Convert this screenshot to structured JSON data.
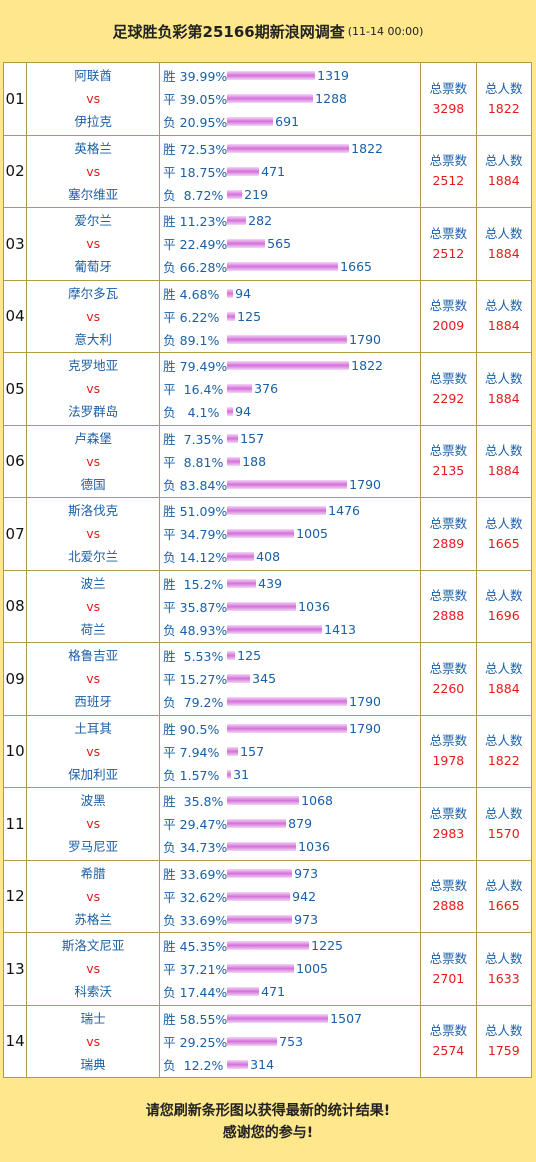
{
  "header": {
    "title": "足球胜负彩第25166期新浪网调查",
    "date": "(11-14 00:00)"
  },
  "stat_labels": {
    "votes": "总票数",
    "people": "总人数"
  },
  "vs_label": "vs",
  "bar_max": 1822,
  "matches": [
    {
      "num": "01",
      "home": "阿联酋",
      "away": "伊拉克",
      "rows": [
        {
          "label": "胜 39.99%",
          "value": 1319
        },
        {
          "label": "平 39.05%",
          "value": 1288
        },
        {
          "label": "负 20.95%",
          "value": 691
        }
      ],
      "votes": "3298",
      "people": "1822"
    },
    {
      "num": "02",
      "home": "英格兰",
      "away": "塞尔维亚",
      "rows": [
        {
          "label": "胜 72.53%",
          "value": 1822
        },
        {
          "label": "平 18.75%",
          "value": 471
        },
        {
          "label": "负  8.72%",
          "value": 219
        }
      ],
      "votes": "2512",
      "people": "1884"
    },
    {
      "num": "03",
      "home": "爱尔兰",
      "away": "葡萄牙",
      "rows": [
        {
          "label": "胜 11.23%",
          "value": 282
        },
        {
          "label": "平 22.49%",
          "value": 565
        },
        {
          "label": "负 66.28%",
          "value": 1665
        }
      ],
      "votes": "2512",
      "people": "1884"
    },
    {
      "num": "04",
      "home": "摩尔多瓦",
      "away": "意大利",
      "rows": [
        {
          "label": "胜 4.68%",
          "value": 94
        },
        {
          "label": "平 6.22%",
          "value": 125
        },
        {
          "label": "负 89.1%",
          "value": 1790
        }
      ],
      "votes": "2009",
      "people": "1884"
    },
    {
      "num": "05",
      "home": "克罗地亚",
      "away": "法罗群岛",
      "rows": [
        {
          "label": "胜 79.49%",
          "value": 1822
        },
        {
          "label": "平  16.4%",
          "value": 376
        },
        {
          "label": "负   4.1%",
          "value": 94
        }
      ],
      "votes": "2292",
      "people": "1884"
    },
    {
      "num": "06",
      "home": "卢森堡",
      "away": "德国",
      "rows": [
        {
          "label": "胜  7.35%",
          "value": 157
        },
        {
          "label": "平  8.81%",
          "value": 188
        },
        {
          "label": "负 83.84%",
          "value": 1790
        }
      ],
      "votes": "2135",
      "people": "1884"
    },
    {
      "num": "07",
      "home": "斯洛伐克",
      "away": "北爱尔兰",
      "rows": [
        {
          "label": "胜 51.09%",
          "value": 1476
        },
        {
          "label": "平 34.79%",
          "value": 1005
        },
        {
          "label": "负 14.12%",
          "value": 408
        }
      ],
      "votes": "2889",
      "people": "1665"
    },
    {
      "num": "08",
      "home": "波兰",
      "away": "荷兰",
      "rows": [
        {
          "label": "胜  15.2%",
          "value": 439
        },
        {
          "label": "平 35.87%",
          "value": 1036
        },
        {
          "label": "负 48.93%",
          "value": 1413
        }
      ],
      "votes": "2888",
      "people": "1696"
    },
    {
      "num": "09",
      "home": "格鲁吉亚",
      "away": "西班牙",
      "rows": [
        {
          "label": "胜  5.53%",
          "value": 125
        },
        {
          "label": "平 15.27%",
          "value": 345
        },
        {
          "label": "负  79.2%",
          "value": 1790
        }
      ],
      "votes": "2260",
      "people": "1884"
    },
    {
      "num": "10",
      "home": "土耳其",
      "away": "保加利亚",
      "rows": [
        {
          "label": "胜 90.5%",
          "value": 1790
        },
        {
          "label": "平 7.94%",
          "value": 157
        },
        {
          "label": "负 1.57%",
          "value": 31
        }
      ],
      "votes": "1978",
      "people": "1822"
    },
    {
      "num": "11",
      "home": "波黑",
      "away": "罗马尼亚",
      "rows": [
        {
          "label": "胜  35.8%",
          "value": 1068
        },
        {
          "label": "平 29.47%",
          "value": 879
        },
        {
          "label": "负 34.73%",
          "value": 1036
        }
      ],
      "votes": "2983",
      "people": "1570"
    },
    {
      "num": "12",
      "home": "希腊",
      "away": "苏格兰",
      "rows": [
        {
          "label": "胜 33.69%",
          "value": 973
        },
        {
          "label": "平 32.62%",
          "value": 942
        },
        {
          "label": "负 33.69%",
          "value": 973
        }
      ],
      "votes": "2888",
      "people": "1665"
    },
    {
      "num": "13",
      "home": "斯洛文尼亚",
      "away": "科索沃",
      "rows": [
        {
          "label": "胜 45.35%",
          "value": 1225
        },
        {
          "label": "平 37.21%",
          "value": 1005
        },
        {
          "label": "负 17.44%",
          "value": 471
        }
      ],
      "votes": "2701",
      "people": "1633"
    },
    {
      "num": "14",
      "home": "瑞士",
      "away": "瑞典",
      "rows": [
        {
          "label": "胜 58.55%",
          "value": 1507
        },
        {
          "label": "平 29.25%",
          "value": 753
        },
        {
          "label": "负  12.2%",
          "value": 314
        }
      ],
      "votes": "2574",
      "people": "1759"
    }
  ],
  "footer": {
    "line1": "请您刷新条形图以获得最新的统计结果!",
    "line2": "感谢您的参与!"
  }
}
